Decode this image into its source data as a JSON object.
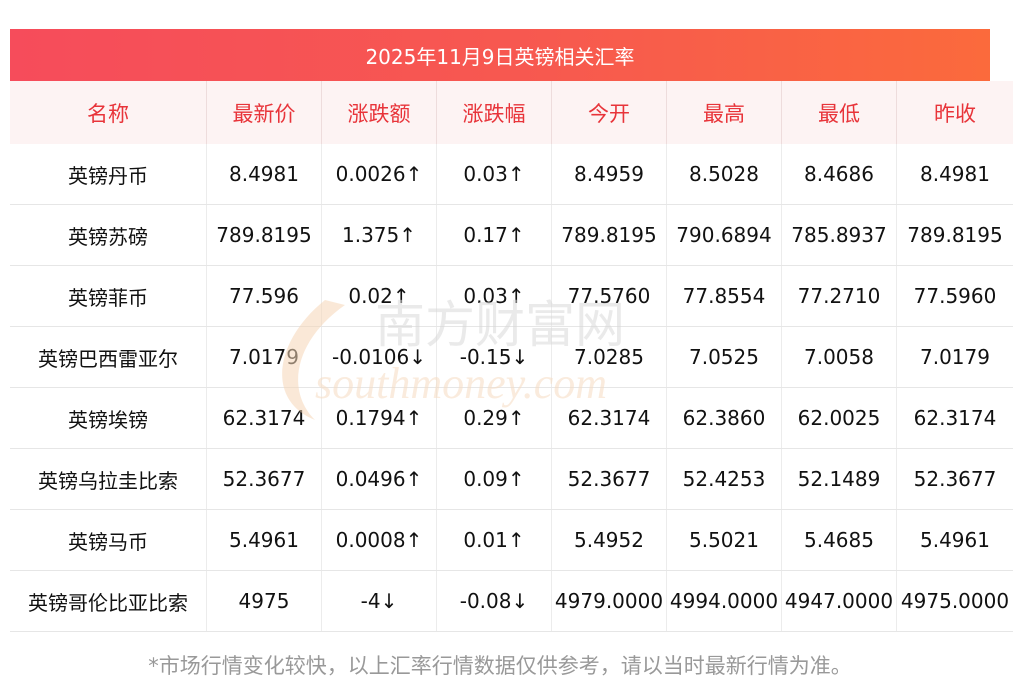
{
  "title": "2025年11月9日英镑相关汇率",
  "columns": [
    "名称",
    "最新价",
    "涨跌额",
    "涨跌幅",
    "今开",
    "最高",
    "最低",
    "昨收"
  ],
  "rows": [
    {
      "name": "英镑丹币",
      "latest": "8.4981",
      "change": "0.0026↑",
      "pct": "0.03↑",
      "open": "8.4959",
      "high": "8.5028",
      "low": "8.4686",
      "prev": "8.4981",
      "dir": "up"
    },
    {
      "name": "英镑苏磅",
      "latest": "789.8195",
      "change": "1.375↑",
      "pct": "0.17↑",
      "open": "789.8195",
      "high": "790.6894",
      "low": "785.8937",
      "prev": "789.8195",
      "dir": "up"
    },
    {
      "name": "英镑菲币",
      "latest": "77.596",
      "change": "0.02↑",
      "pct": "0.03↑",
      "open": "77.5760",
      "high": "77.8554",
      "low": "77.2710",
      "prev": "77.5960",
      "dir": "up"
    },
    {
      "name": "英镑巴西雷亚尔",
      "latest": "7.0179",
      "change": "-0.0106↓",
      "pct": "-0.15↓",
      "open": "7.0285",
      "high": "7.0525",
      "low": "7.0058",
      "prev": "7.0179",
      "dir": "down"
    },
    {
      "name": "英镑埃镑",
      "latest": "62.3174",
      "change": "0.1794↑",
      "pct": "0.29↑",
      "open": "62.3174",
      "high": "62.3860",
      "low": "62.0025",
      "prev": "62.3174",
      "dir": "up"
    },
    {
      "name": "英镑乌拉圭比索",
      "latest": "52.3677",
      "change": "0.0496↑",
      "pct": "0.09↑",
      "open": "52.3677",
      "high": "52.4253",
      "low": "52.1489",
      "prev": "52.3677",
      "dir": "up"
    },
    {
      "name": "英镑马币",
      "latest": "5.4961",
      "change": "0.0008↑",
      "pct": "0.01↑",
      "open": "5.4952",
      "high": "5.5021",
      "low": "5.4685",
      "prev": "5.4961",
      "dir": "up"
    },
    {
      "name": "英镑哥伦比亚比索",
      "latest": "4975",
      "change": "-4↓",
      "pct": "-0.08↓",
      "open": "4979.0000",
      "high": "4994.0000",
      "low": "4947.0000",
      "prev": "4975.0000",
      "dir": "down"
    }
  ],
  "watermark": {
    "text_cn": "南方财富网",
    "text_en": "southmoney.com"
  },
  "footnote": "*市场行情变化较快，以上汇率行情数据仅供参考，请以当时最新行情为准。",
  "colors": {
    "header_start": "#f64c5b",
    "header_end": "#fb6a3c",
    "up": "#e8201e",
    "down": "#118b11",
    "column_header": "#e8343a"
  }
}
